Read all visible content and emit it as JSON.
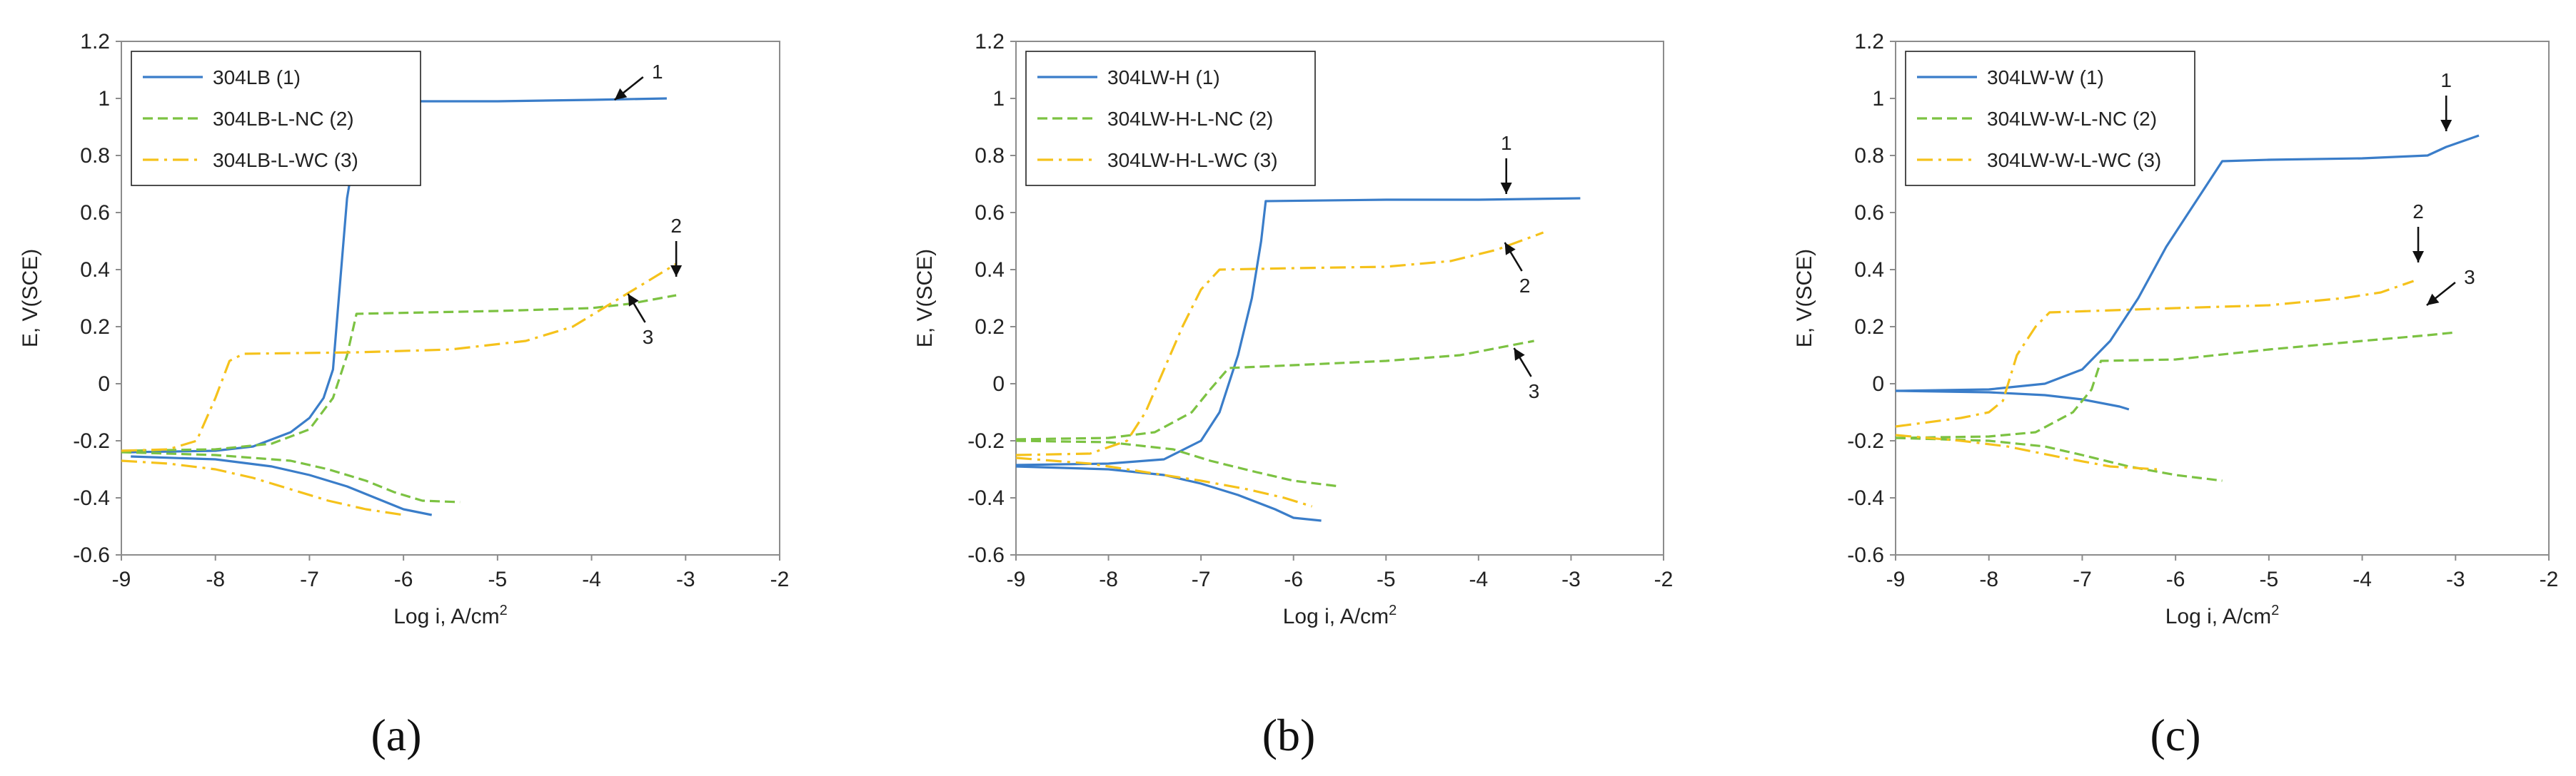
{
  "chart_data": [
    {
      "type": "line",
      "panel_label": "(a)",
      "xlabel": "Log i, A/cm",
      "xlabel_sup": "2",
      "ylabel": "E, V(SCE)",
      "xlim": [
        -9,
        -2
      ],
      "ylim": [
        -0.6,
        1.2
      ],
      "xticks": [
        "-9",
        "-8",
        "-7",
        "-6",
        "-5",
        "-4",
        "-3",
        "-2"
      ],
      "yticks": [
        "-0.6",
        "-0.4",
        "-0.2",
        "0",
        "0.2",
        "0.4",
        "0.6",
        "0.8",
        "1",
        "1.2"
      ],
      "series": [
        {
          "name": "304LB (1)",
          "color": "#3a7dc9",
          "dash": "solid",
          "anodic": [
            [
              -8.9,
              -0.24
            ],
            [
              -8,
              -0.235
            ],
            [
              -7.6,
              -0.22
            ],
            [
              -7.2,
              -0.17
            ],
            [
              -7,
              -0.12
            ],
            [
              -6.85,
              -0.05
            ],
            [
              -6.75,
              0.05
            ],
            [
              -6.7,
              0.25
            ],
            [
              -6.65,
              0.45
            ],
            [
              -6.6,
              0.65
            ],
            [
              -6.5,
              0.85
            ],
            [
              -6.4,
              0.95
            ],
            [
              -6.2,
              0.99
            ],
            [
              -5,
              0.99
            ],
            [
              -4,
              0.995
            ],
            [
              -3.2,
              1.0
            ]
          ],
          "cathodic": [
            [
              -8.9,
              -0.255
            ],
            [
              -8,
              -0.265
            ],
            [
              -7.4,
              -0.29
            ],
            [
              -7,
              -0.32
            ],
            [
              -6.6,
              -0.36
            ],
            [
              -6.3,
              -0.4
            ],
            [
              -6,
              -0.44
            ],
            [
              -5.7,
              -0.46
            ]
          ]
        },
        {
          "name": "304LB-L-NC (2)",
          "color": "#7cc242",
          "dash": "dashed",
          "anodic": [
            [
              -9,
              -0.235
            ],
            [
              -8,
              -0.23
            ],
            [
              -7.4,
              -0.21
            ],
            [
              -7,
              -0.16
            ],
            [
              -6.75,
              -0.05
            ],
            [
              -6.6,
              0.1
            ],
            [
              -6.5,
              0.245
            ],
            [
              -5,
              0.255
            ],
            [
              -4,
              0.265
            ],
            [
              -3.6,
              0.28
            ],
            [
              -3.1,
              0.31
            ]
          ],
          "cathodic": [
            [
              -9,
              -0.24
            ],
            [
              -8,
              -0.25
            ],
            [
              -7.2,
              -0.27
            ],
            [
              -6.8,
              -0.3
            ],
            [
              -6.4,
              -0.34
            ],
            [
              -6.1,
              -0.38
            ],
            [
              -5.8,
              -0.41
            ],
            [
              -5.4,
              -0.415
            ]
          ]
        },
        {
          "name": "304LB-L-WC (3)",
          "color": "#f5c21b",
          "dash": "dashdot",
          "anodic": [
            [
              -9,
              -0.235
            ],
            [
              -8.5,
              -0.23
            ],
            [
              -8.2,
              -0.2
            ],
            [
              -8,
              -0.05
            ],
            [
              -7.85,
              0.08
            ],
            [
              -7.7,
              0.105
            ],
            [
              -6.5,
              0.11
            ],
            [
              -5.5,
              0.12
            ],
            [
              -4.7,
              0.15
            ],
            [
              -4.2,
              0.2
            ],
            [
              -3.6,
              0.32
            ],
            [
              -3.1,
              0.42
            ]
          ],
          "cathodic": [
            [
              -9,
              -0.27
            ],
            [
              -8.5,
              -0.28
            ],
            [
              -8,
              -0.3
            ],
            [
              -7.6,
              -0.33
            ],
            [
              -7.2,
              -0.37
            ],
            [
              -6.8,
              -0.41
            ],
            [
              -6.4,
              -0.44
            ],
            [
              -6,
              -0.46
            ]
          ]
        }
      ],
      "annotations": [
        {
          "text": "1",
          "x": -3.3,
          "y": 1.07,
          "arrow_dir": "down-left"
        },
        {
          "text": "2",
          "x": -3.1,
          "y": 0.53,
          "arrow_dir": "down"
        },
        {
          "text": "3",
          "x": -3.4,
          "y": 0.14,
          "arrow_dir": "up-left"
        }
      ]
    },
    {
      "type": "line",
      "panel_label": "(b)",
      "xlabel": "Log i, A/cm",
      "xlabel_sup": "2",
      "ylabel": "E, V(SCE)",
      "xlim": [
        -9,
        -2
      ],
      "ylim": [
        -0.6,
        1.2
      ],
      "xticks": [
        "-9",
        "-8",
        "-7",
        "-6",
        "-5",
        "-4",
        "-3",
        "-2"
      ],
      "yticks": [
        "-0.6",
        "-0.4",
        "-0.2",
        "0",
        "0.2",
        "0.4",
        "0.6",
        "0.8",
        "1",
        "1.2"
      ],
      "series": [
        {
          "name": "304LW-H (1)",
          "color": "#3a7dc9",
          "dash": "solid",
          "anodic": [
            [
              -9,
              -0.285
            ],
            [
              -8,
              -0.28
            ],
            [
              -7.4,
              -0.265
            ],
            [
              -7,
              -0.2
            ],
            [
              -6.8,
              -0.1
            ],
            [
              -6.6,
              0.1
            ],
            [
              -6.45,
              0.3
            ],
            [
              -6.35,
              0.5
            ],
            [
              -6.3,
              0.64
            ],
            [
              -5,
              0.645
            ],
            [
              -4,
              0.645
            ],
            [
              -2.9,
              0.65
            ]
          ],
          "cathodic": [
            [
              -9,
              -0.29
            ],
            [
              -8,
              -0.3
            ],
            [
              -7.4,
              -0.32
            ],
            [
              -7,
              -0.35
            ],
            [
              -6.6,
              -0.39
            ],
            [
              -6.2,
              -0.44
            ],
            [
              -6,
              -0.47
            ],
            [
              -5.7,
              -0.48
            ]
          ]
        },
        {
          "name": "304LW-H-L-NC (2)",
          "color": "#7cc242",
          "dash": "dashed",
          "anodic": [
            [
              -9,
              -0.195
            ],
            [
              -8,
              -0.19
            ],
            [
              -7.5,
              -0.17
            ],
            [
              -7.1,
              -0.1
            ],
            [
              -6.9,
              -0.02
            ],
            [
              -6.7,
              0.055
            ],
            [
              -6,
              0.065
            ],
            [
              -5,
              0.08
            ],
            [
              -4.2,
              0.1
            ],
            [
              -3.4,
              0.15
            ]
          ],
          "cathodic": [
            [
              -9,
              -0.2
            ],
            [
              -8,
              -0.205
            ],
            [
              -7.3,
              -0.23
            ],
            [
              -6.9,
              -0.27
            ],
            [
              -6.4,
              -0.31
            ],
            [
              -6,
              -0.34
            ],
            [
              -5.5,
              -0.36
            ]
          ]
        },
        {
          "name": "304LW-H-L-WC (3)",
          "color": "#f5c21b",
          "dash": "dashdot",
          "anodic": [
            [
              -9,
              -0.25
            ],
            [
              -8.2,
              -0.245
            ],
            [
              -7.8,
              -0.2
            ],
            [
              -7.6,
              -0.1
            ],
            [
              -7.4,
              0.05
            ],
            [
              -7.2,
              0.2
            ],
            [
              -7,
              0.33
            ],
            [
              -6.8,
              0.4
            ],
            [
              -6,
              0.405
            ],
            [
              -5,
              0.41
            ],
            [
              -4.3,
              0.43
            ],
            [
              -3.8,
              0.47
            ],
            [
              -3.3,
              0.53
            ]
          ],
          "cathodic": [
            [
              -9,
              -0.26
            ],
            [
              -8.2,
              -0.28
            ],
            [
              -7.6,
              -0.31
            ],
            [
              -7,
              -0.34
            ],
            [
              -6.5,
              -0.37
            ],
            [
              -6.1,
              -0.4
            ],
            [
              -5.8,
              -0.43
            ]
          ]
        }
      ],
      "annotations": [
        {
          "text": "1",
          "x": -3.7,
          "y": 0.82,
          "arrow_dir": "down"
        },
        {
          "text": "2",
          "x": -3.5,
          "y": 0.32,
          "arrow_dir": "up-left"
        },
        {
          "text": "3",
          "x": -3.4,
          "y": -0.05,
          "arrow_dir": "up-left"
        }
      ]
    },
    {
      "type": "line",
      "panel_label": "(c)",
      "xlabel": "Log i, A/cm",
      "xlabel_sup": "2",
      "ylabel": "E, V(SCE)",
      "xlim": [
        -9,
        -2
      ],
      "ylim": [
        -0.6,
        1.2
      ],
      "xticks": [
        "-9",
        "-8",
        "-7",
        "-6",
        "-5",
        "-4",
        "-3",
        "-2"
      ],
      "yticks": [
        "-0.6",
        "-0.4",
        "-0.2",
        "0",
        "0.2",
        "0.4",
        "0.6",
        "0.8",
        "1",
        "1.2"
      ],
      "series": [
        {
          "name": "304LW-W (1)",
          "color": "#3a7dc9",
          "dash": "solid",
          "anodic": [
            [
              -9,
              -0.025
            ],
            [
              -8,
              -0.02
            ],
            [
              -7.4,
              0
            ],
            [
              -7,
              0.05
            ],
            [
              -6.7,
              0.15
            ],
            [
              -6.4,
              0.3
            ],
            [
              -6.1,
              0.48
            ],
            [
              -5.9,
              0.58
            ],
            [
              -5.7,
              0.68
            ],
            [
              -5.5,
              0.78
            ],
            [
              -5,
              0.785
            ],
            [
              -4,
              0.79
            ],
            [
              -3.3,
              0.8
            ],
            [
              -3.1,
              0.83
            ],
            [
              -2.75,
              0.87
            ]
          ],
          "cathodic": [
            [
              -9,
              -0.025
            ],
            [
              -8,
              -0.03
            ],
            [
              -7.4,
              -0.04
            ],
            [
              -7,
              -0.055
            ],
            [
              -6.6,
              -0.08
            ],
            [
              -6.5,
              -0.09
            ]
          ]
        },
        {
          "name": "304LW-W-L-NC (2)",
          "color": "#7cc242",
          "dash": "dashed",
          "anodic": [
            [
              -9,
              -0.19
            ],
            [
              -8,
              -0.185
            ],
            [
              -7.5,
              -0.17
            ],
            [
              -7.1,
              -0.1
            ],
            [
              -6.9,
              -0.02
            ],
            [
              -6.8,
              0.08
            ],
            [
              -6,
              0.085
            ],
            [
              -5,
              0.12
            ],
            [
              -4,
              0.15
            ],
            [
              -3.3,
              0.17
            ],
            [
              -3,
              0.18
            ]
          ],
          "cathodic": [
            [
              -9,
              -0.19
            ],
            [
              -8,
              -0.2
            ],
            [
              -7.4,
              -0.22
            ],
            [
              -7,
              -0.25
            ],
            [
              -6.5,
              -0.29
            ],
            [
              -6,
              -0.32
            ],
            [
              -5.5,
              -0.34
            ]
          ]
        },
        {
          "name": "304LW-W-L-WC (3)",
          "color": "#f5c21b",
          "dash": "dashdot",
          "anodic": [
            [
              -9,
              -0.15
            ],
            [
              -8.3,
              -0.12
            ],
            [
              -8,
              -0.1
            ],
            [
              -7.85,
              -0.06
            ],
            [
              -7.7,
              0.1
            ],
            [
              -7.5,
              0.2
            ],
            [
              -7.35,
              0.25
            ],
            [
              -6,
              0.265
            ],
            [
              -5,
              0.275
            ],
            [
              -4.2,
              0.3
            ],
            [
              -3.8,
              0.32
            ],
            [
              -3.45,
              0.36
            ]
          ],
          "cathodic": [
            [
              -9,
              -0.18
            ],
            [
              -8.3,
              -0.2
            ],
            [
              -7.8,
              -0.22
            ],
            [
              -7.2,
              -0.26
            ],
            [
              -6.7,
              -0.29
            ],
            [
              -6.2,
              -0.3
            ]
          ]
        }
      ],
      "annotations": [
        {
          "text": "1",
          "x": -3.1,
          "y": 1.04,
          "arrow_dir": "down"
        },
        {
          "text": "2",
          "x": -3.4,
          "y": 0.58,
          "arrow_dir": "down"
        },
        {
          "text": "3",
          "x": -2.85,
          "y": 0.35,
          "arrow_dir": "down-left"
        }
      ]
    }
  ]
}
